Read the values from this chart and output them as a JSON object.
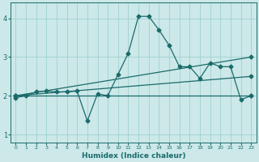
{
  "xlabel": "Humidex (Indice chaleur)",
  "ylabel": "",
  "bg_color": "#cce8e8",
  "line_color": "#1a6b6b",
  "grid_color": "#99cccc",
  "xlim": [
    -0.5,
    23.5
  ],
  "ylim": [
    0.8,
    4.4
  ],
  "yticks": [
    1,
    2,
    3,
    4
  ],
  "xticks": [
    0,
    1,
    2,
    3,
    4,
    5,
    6,
    7,
    8,
    9,
    10,
    11,
    12,
    13,
    14,
    15,
    16,
    17,
    18,
    19,
    20,
    21,
    22,
    23
  ],
  "series": [
    {
      "x": [
        0,
        1,
        2,
        3,
        4,
        5,
        6,
        7,
        8,
        9,
        10,
        11,
        12,
        13,
        14,
        15,
        16,
        17,
        18,
        19,
        20,
        21,
        22,
        23
      ],
      "y": [
        1.95,
        2.0,
        2.1,
        2.12,
        2.1,
        2.1,
        2.12,
        1.35,
        2.05,
        2.0,
        2.55,
        3.1,
        4.05,
        4.05,
        3.7,
        3.3,
        2.75,
        2.75,
        2.45,
        2.85,
        2.75,
        2.75,
        1.9,
        2.0
      ],
      "marker": "D",
      "markersize": 2.5,
      "linewidth": 0.9
    },
    {
      "x": [
        0,
        23
      ],
      "y": [
        2.0,
        3.0
      ],
      "marker": "D",
      "markersize": 2.5,
      "linewidth": 0.9
    },
    {
      "x": [
        0,
        23
      ],
      "y": [
        2.0,
        2.5
      ],
      "marker": "D",
      "markersize": 2.5,
      "linewidth": 0.9
    },
    {
      "x": [
        0,
        23
      ],
      "y": [
        2.0,
        2.0
      ],
      "marker": "D",
      "markersize": 2.5,
      "linewidth": 0.9
    }
  ]
}
